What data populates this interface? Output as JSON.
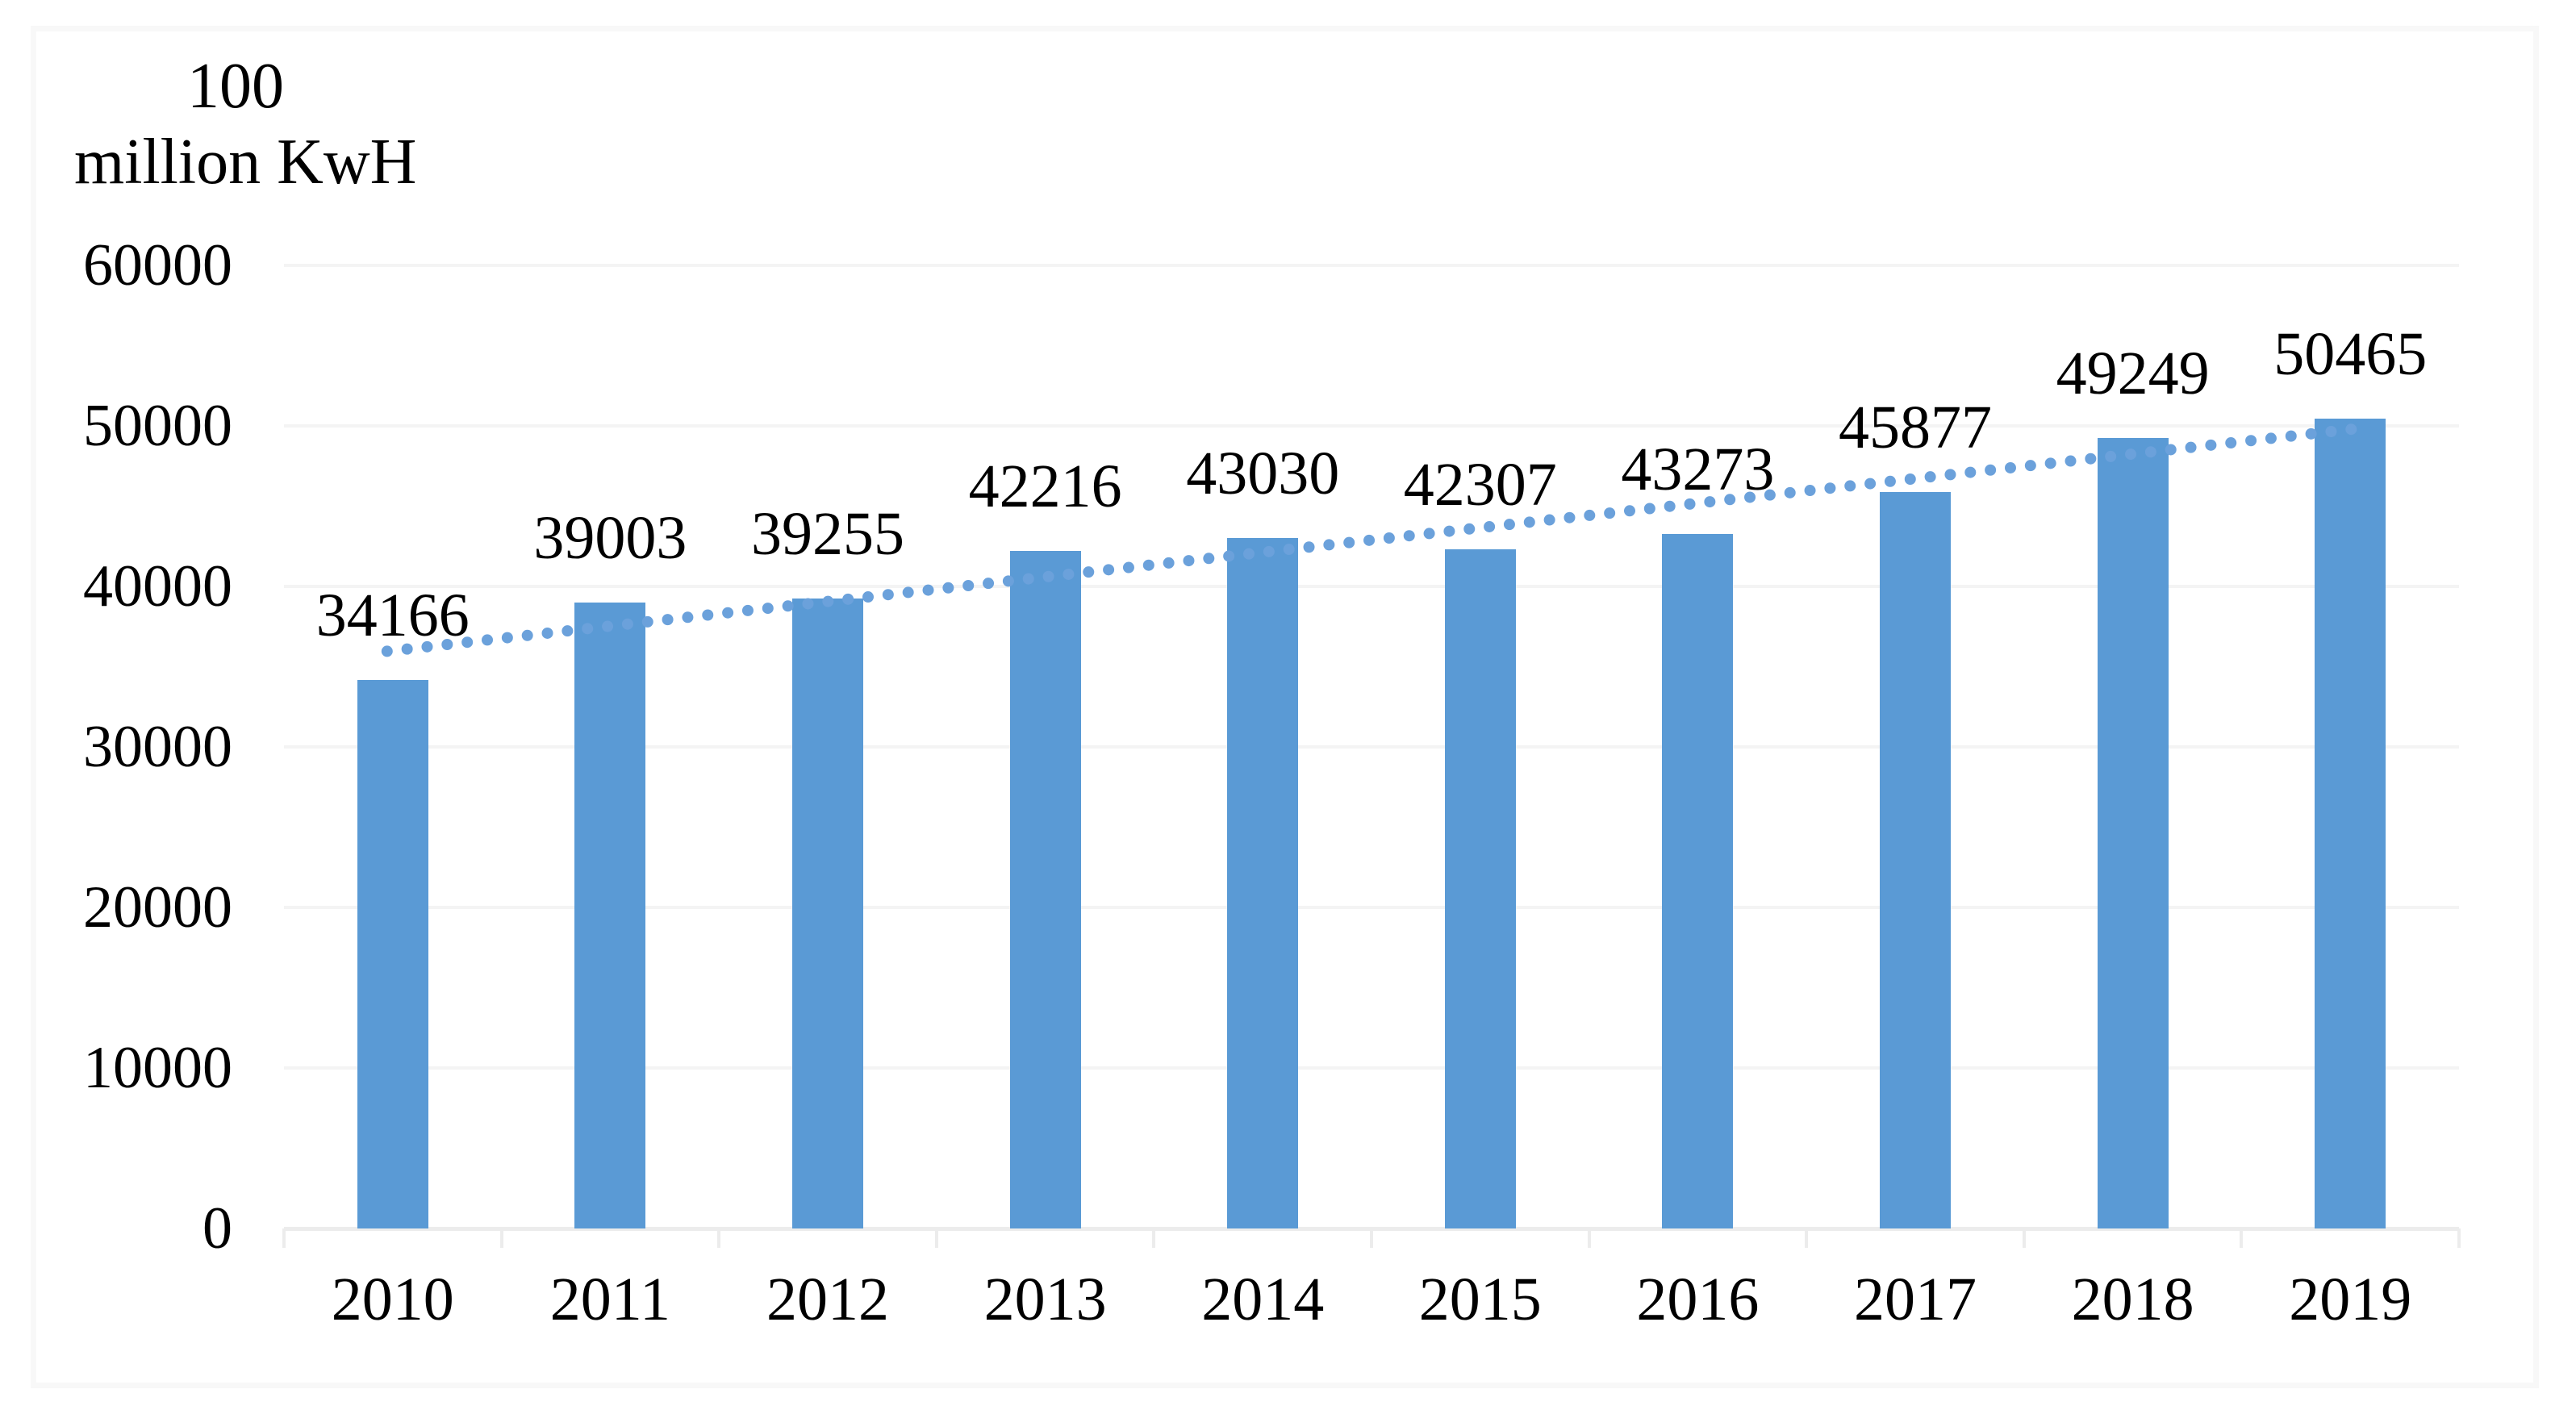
{
  "chart_data": {
    "type": "bar",
    "unit_label": {
      "line1": "100",
      "line2": "million KwH"
    },
    "categories": [
      "2010",
      "2011",
      "2012",
      "2013",
      "2014",
      "2015",
      "2016",
      "2017",
      "2018",
      "2019"
    ],
    "values": [
      34166,
      39003,
      39255,
      42216,
      43030,
      42307,
      43273,
      45877,
      49249,
      50465
    ],
    "data_labels_shown": true,
    "ylim": [
      0,
      60000
    ],
    "ytick_interval": 10000,
    "ytick_labels": [
      "0",
      "10000",
      "20000",
      "30000",
      "40000",
      "50000",
      "60000"
    ],
    "grid": "horizontal",
    "legend": "none",
    "bar_color": "#5A9AD5",
    "trendline": {
      "type": "linear",
      "style": "dotted",
      "color": "#6BA1DB",
      "start_value": 35958,
      "end_value": 49811
    }
  }
}
